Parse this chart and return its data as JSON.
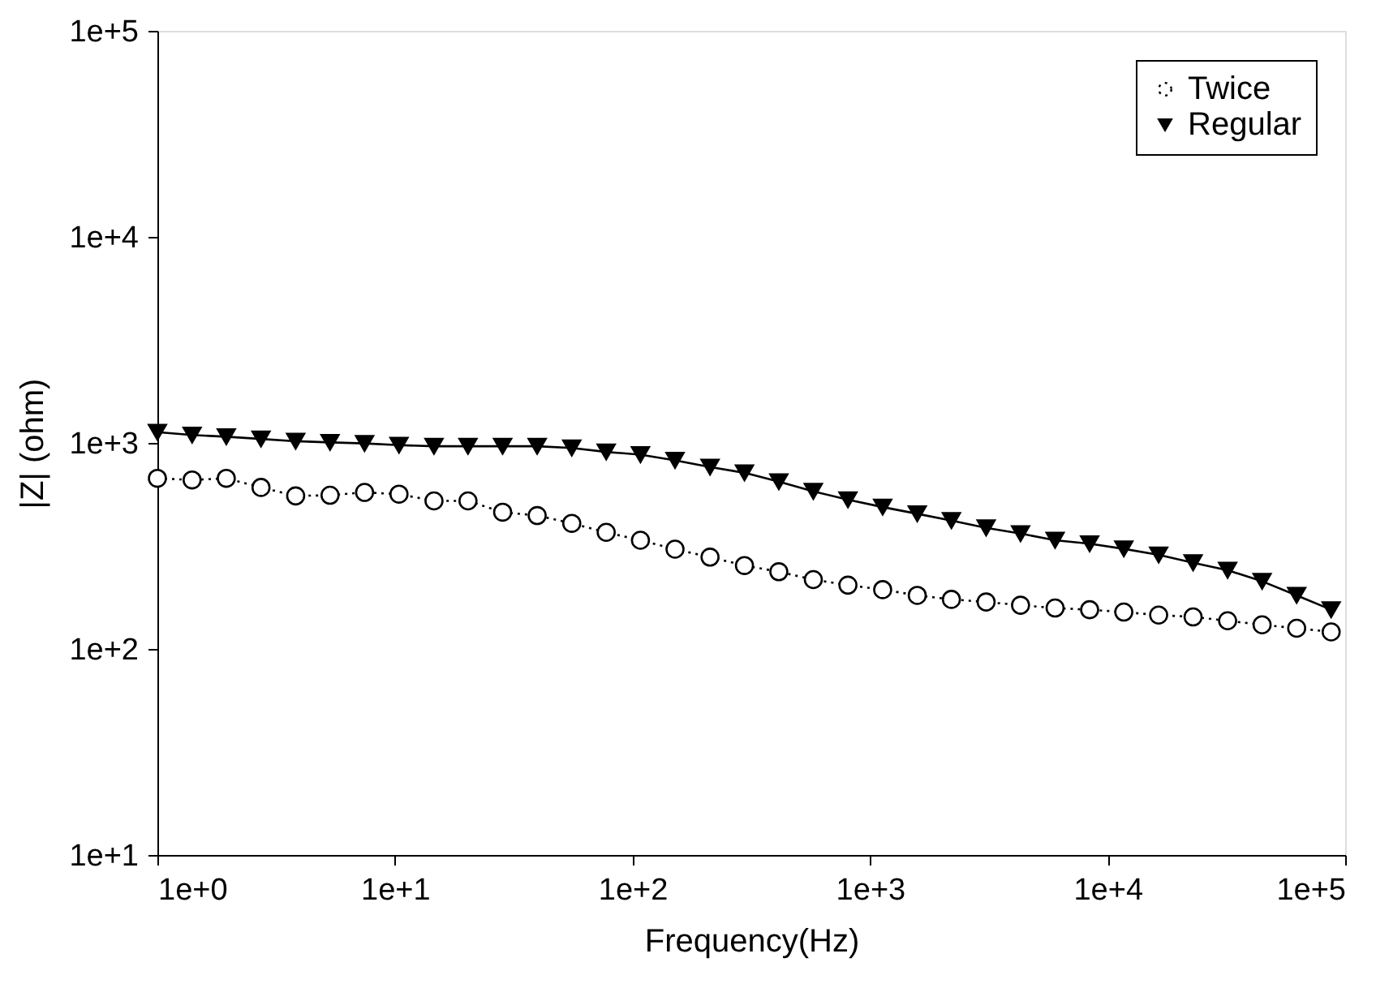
{
  "chart_data": {
    "type": "line",
    "xlabel": "Frequency(Hz)",
    "ylabel": "|Z| (ohm)",
    "x": [
      1,
      1.4,
      1.95,
      2.73,
      3.82,
      5.33,
      7.45,
      10.4,
      14.6,
      20.3,
      28.4,
      39.7,
      55.5,
      77.5,
      108,
      151,
      212,
      296,
      413,
      577,
      807,
      1130,
      1580,
      2200,
      3080,
      4300,
      6010,
      8400,
      11700,
      16400,
      22900,
      32000,
      44700,
      62500,
      87300
    ],
    "series": [
      {
        "name": "Twice",
        "color": "#000000",
        "marker": "circle",
        "line_style": "dotted",
        "values": [
          673,
          661,
          673,
          608,
          553,
          557,
          575,
          564,
          523,
          523,
          461,
          444,
          407,
          368,
          337,
          305,
          279,
          254,
          237,
          217,
          204,
          194,
          182,
          174,
          169,
          163,
          158,
          155,
          151,
          146,
          143,
          137,
          131,
          126,
          121
        ]
      },
      {
        "name": "Regular",
        "color": "#000000",
        "marker": "triangle",
        "line_style": "solid",
        "values": [
          1127,
          1092,
          1072,
          1045,
          1019,
          1006,
          994,
          975,
          963,
          963,
          963,
          963,
          945,
          904,
          877,
          823,
          763,
          716,
          648,
          582,
          530,
          488,
          453,
          420,
          387,
          363,
          337,
          324,
          306,
          286,
          262,
          241,
          213,
          182,
          155
        ]
      }
    ],
    "log": "xy",
    "xlim": [
      1,
      100000
    ],
    "ylim": [
      10,
      100000
    ],
    "xticks": [
      {
        "value": 1,
        "label": "1e+0"
      },
      {
        "value": 10,
        "label": "1e+1"
      },
      {
        "value": 100,
        "label": "1e+2"
      },
      {
        "value": 1000,
        "label": "1e+3"
      },
      {
        "value": 10000,
        "label": "1e+4"
      },
      {
        "value": 100000,
        "label": "1e+5"
      }
    ],
    "yticks": [
      {
        "value": 10,
        "label": "1e+1"
      },
      {
        "value": 100,
        "label": "1e+2"
      },
      {
        "value": 1000,
        "label": "1e+3"
      },
      {
        "value": 10000,
        "label": "1e+4"
      },
      {
        "value": 100000,
        "label": "1e+5"
      }
    ],
    "grid": false,
    "legend": "top right"
  }
}
